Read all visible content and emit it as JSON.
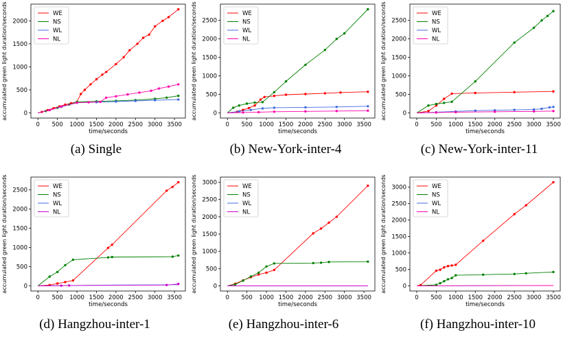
{
  "chart_data": [
    {
      "type": "line",
      "title": "",
      "caption": "(a) Single",
      "xlabel": "time/seconds",
      "ylabel": "accumulated green light duration/seconds",
      "xlim": [
        0,
        3600
      ],
      "ylim": [
        0,
        2250
      ],
      "xticks": [
        0,
        500,
        1000,
        1500,
        2000,
        2500,
        3000,
        3500
      ],
      "yticks": [
        0,
        500,
        1000,
        1500,
        2000
      ],
      "xtick_labels": [
        "0",
        "500",
        "1000",
        "1500",
        "2000",
        "2500",
        "3000",
        "3500"
      ],
      "ytick_labels": [
        "0",
        "500",
        "1000",
        "1500",
        "2000"
      ],
      "legend": "top-left",
      "grid": false,
      "series": [
        {
          "name": "WE",
          "color": "#ff0000",
          "x": [
            0,
            100,
            250,
            400,
            550,
            700,
            850,
            1000,
            1100,
            1200,
            1350,
            1500,
            1650,
            1750,
            2000,
            2200,
            2350,
            2550,
            2700,
            2850,
            3000,
            3200,
            3350,
            3600
          ],
          "y": [
            0,
            20,
            60,
            100,
            140,
            180,
            210,
            240,
            410,
            500,
            620,
            730,
            830,
            890,
            1060,
            1210,
            1360,
            1500,
            1630,
            1700,
            1880,
            2000,
            2080,
            2250
          ],
          "markers": true
        },
        {
          "name": "NS",
          "color": "#008000",
          "x": [
            0,
            200,
            500,
            800,
            1000,
            1500,
            2000,
            2500,
            3000,
            3300,
            3600
          ],
          "y": [
            0,
            40,
            110,
            180,
            240,
            250,
            262,
            278,
            305,
            330,
            370
          ],
          "markers": true
        },
        {
          "name": "WL",
          "color": "#4169e1",
          "x": [
            0,
            300,
            600,
            1000,
            1500,
            2000,
            2500,
            3000,
            3600
          ],
          "y": [
            0,
            60,
            130,
            220,
            232,
            245,
            260,
            275,
            290
          ],
          "markers": true
        },
        {
          "name": "NL",
          "color": "#ff00aa",
          "x": [
            0,
            300,
            600,
            1000,
            1300,
            1600,
            1750,
            2000,
            2300,
            2600,
            2900,
            3100,
            3350,
            3600
          ],
          "y": [
            0,
            60,
            140,
            220,
            230,
            240,
            330,
            360,
            400,
            440,
            480,
            530,
            570,
            620
          ],
          "markers": true
        }
      ]
    },
    {
      "type": "line",
      "title": "",
      "caption": "(b) New-York-inter-4",
      "xlabel": "time/seconds",
      "ylabel": "accumulated green light duration/seconds",
      "xlim": [
        0,
        3600
      ],
      "ylim": [
        0,
        2800
      ],
      "xticks": [
        0,
        500,
        1000,
        1500,
        2000,
        2500,
        3000,
        3500
      ],
      "yticks": [
        0,
        500,
        1000,
        1500,
        2000,
        2500
      ],
      "xtick_labels": [
        "0",
        "500",
        "1000",
        "1500",
        "2000",
        "2500",
        "3000",
        "3500"
      ],
      "ytick_labels": [
        "0",
        "500",
        "1000",
        "1500",
        "2000",
        "2500"
      ],
      "legend": "top-left",
      "grid": false,
      "series": [
        {
          "name": "WE",
          "color": "#ff0000",
          "x": [
            0,
            250,
            400,
            550,
            700,
            850,
            950,
            1200,
            1500,
            2000,
            2500,
            2900,
            3600
          ],
          "y": [
            0,
            30,
            80,
            130,
            200,
            360,
            430,
            460,
            490,
            510,
            530,
            550,
            570
          ],
          "markers": true
        },
        {
          "name": "NS",
          "color": "#008000",
          "x": [
            0,
            150,
            300,
            500,
            700,
            900,
            1200,
            1500,
            2000,
            2500,
            2800,
            3000,
            3600
          ],
          "y": [
            0,
            140,
            200,
            250,
            280,
            290,
            560,
            850,
            1300,
            1700,
            2000,
            2150,
            2800
          ],
          "markers": true
        },
        {
          "name": "WL",
          "color": "#4169e1",
          "x": [
            0,
            300,
            600,
            900,
            1200,
            2000,
            2800,
            3600
          ],
          "y": [
            0,
            40,
            80,
            120,
            140,
            150,
            160,
            180
          ],
          "markers": true
        },
        {
          "name": "NL",
          "color": "#ff00aa",
          "x": [
            0,
            400,
            800,
            1200,
            2000,
            2800,
            3600
          ],
          "y": [
            0,
            10,
            20,
            30,
            40,
            50,
            60
          ],
          "markers": true
        }
      ]
    },
    {
      "type": "line",
      "title": "",
      "caption": "(c) New-York-inter-11",
      "xlabel": "time/seconds",
      "ylabel": "accumulated green light duration/seconds",
      "xlim": [
        0,
        3500
      ],
      "ylim": [
        0,
        2800
      ],
      "xticks": [
        0,
        500,
        1000,
        1500,
        2000,
        2500,
        3000,
        3500
      ],
      "yticks": [
        0,
        500,
        1000,
        1500,
        2000,
        2500
      ],
      "xtick_labels": [
        "0",
        "500",
        "1000",
        "1500",
        "2000",
        "2500",
        "3000",
        "3500"
      ],
      "ytick_labels": [
        "0",
        "500",
        "1000",
        "1500",
        "2000",
        "2500"
      ],
      "legend": "top-left",
      "grid": false,
      "series": [
        {
          "name": "WE",
          "color": "#ff0000",
          "x": [
            0,
            300,
            500,
            700,
            900,
            1500,
            2500,
            3500
          ],
          "y": [
            0,
            50,
            200,
            380,
            520,
            540,
            560,
            580
          ],
          "markers": true
        },
        {
          "name": "NS",
          "color": "#008000",
          "x": [
            0,
            300,
            500,
            700,
            900,
            1500,
            2500,
            3000,
            3200,
            3350,
            3500
          ],
          "y": [
            0,
            200,
            240,
            270,
            300,
            850,
            1900,
            2300,
            2500,
            2620,
            2750
          ],
          "markers": true
        },
        {
          "name": "WL",
          "color": "#4169e1",
          "x": [
            0,
            500,
            1000,
            1500,
            2000,
            2500,
            3000,
            3200,
            3400,
            3500
          ],
          "y": [
            0,
            20,
            40,
            60,
            70,
            80,
            90,
            110,
            150,
            160
          ],
          "markers": true
        },
        {
          "name": "NL",
          "color": "#ff00aa",
          "x": [
            0,
            500,
            1000,
            2000,
            3000,
            3500
          ],
          "y": [
            0,
            10,
            20,
            30,
            40,
            50
          ],
          "markers": true
        }
      ]
    },
    {
      "type": "line",
      "title": "",
      "caption": "(d) Hangzhou-inter-1",
      "xlabel": "time/seconds",
      "ylabel": "accumulated green light duration/seconds",
      "xlim": [
        0,
        3600
      ],
      "ylim": [
        0,
        2700
      ],
      "xticks": [
        0,
        500,
        1000,
        1500,
        2000,
        2500,
        3000,
        3500
      ],
      "yticks": [
        0,
        500,
        1000,
        1500,
        2000,
        2500
      ],
      "xtick_labels": [
        "0",
        "500",
        "1000",
        "1500",
        "2000",
        "2500",
        "3000",
        "3500"
      ],
      "ytick_labels": [
        "0",
        "500",
        "1000",
        "1500",
        "2000",
        "2500"
      ],
      "legend": "top-left",
      "grid": false,
      "series": [
        {
          "name": "WE",
          "color": "#ff0000",
          "x": [
            0,
            300,
            500,
            700,
            900,
            1800,
            1900,
            3300,
            3450,
            3600
          ],
          "y": [
            0,
            20,
            60,
            100,
            140,
            990,
            1070,
            2480,
            2580,
            2700
          ],
          "markers": true
        },
        {
          "name": "NS",
          "color": "#008000",
          "x": [
            0,
            300,
            500,
            700,
            900,
            1800,
            1900,
            3450,
            3600
          ],
          "y": [
            0,
            240,
            360,
            540,
            680,
            740,
            750,
            760,
            790
          ],
          "markers": true
        },
        {
          "name": "WL",
          "color": "#4169e1",
          "x": [
            0,
            1000,
            2000,
            3000,
            3600
          ],
          "y": [
            0,
            10,
            20,
            25,
            30
          ],
          "markers": false
        },
        {
          "name": "NL",
          "color": "#cc00cc",
          "x": [
            0,
            600,
            800,
            3300,
            3600
          ],
          "y": [
            0,
            5,
            10,
            20,
            50
          ],
          "markers": true
        }
      ]
    },
    {
      "type": "line",
      "title": "",
      "caption": "(e) Hangzhou-inter-6",
      "xlabel": "time/seconds",
      "ylabel": "accumulated green light duration/seconds",
      "xlim": [
        0,
        3600
      ],
      "ylim": [
        0,
        3000
      ],
      "xticks": [
        0,
        500,
        1000,
        1500,
        2000,
        2500,
        3000,
        3500
      ],
      "yticks": [
        0,
        500,
        1000,
        1500,
        2000,
        2500,
        3000
      ],
      "xtick_labels": [
        "0",
        "500",
        "1000",
        "1500",
        "2000",
        "2500",
        "3000",
        "3500"
      ],
      "ytick_labels": [
        "0",
        "500",
        "1000",
        "1500",
        "2000",
        "2500",
        "3000"
      ],
      "legend": "top-left",
      "grid": false,
      "series": [
        {
          "name": "WE",
          "color": "#ff0000",
          "x": [
            0,
            200,
            400,
            600,
            800,
            1000,
            1200,
            2200,
            2400,
            2600,
            2800,
            3600
          ],
          "y": [
            0,
            60,
            160,
            250,
            330,
            380,
            460,
            1520,
            1660,
            1830,
            2000,
            2900
          ],
          "markers": true
        },
        {
          "name": "NS",
          "color": "#008000",
          "x": [
            0,
            200,
            400,
            600,
            800,
            1000,
            1200,
            2200,
            2400,
            2600,
            3600
          ],
          "y": [
            0,
            40,
            150,
            270,
            380,
            560,
            650,
            660,
            670,
            690,
            700
          ],
          "markers": true
        },
        {
          "name": "WL",
          "color": "#4169e1",
          "x": [
            0,
            1800,
            3600
          ],
          "y": [
            0,
            0,
            0
          ],
          "markers": false
        },
        {
          "name": "NL",
          "color": "#cc00cc",
          "x": [
            0,
            1800,
            3600
          ],
          "y": [
            0,
            0,
            0
          ],
          "markers": false
        }
      ]
    },
    {
      "type": "line",
      "title": "",
      "caption": "(f) Hangzhou-inter-10",
      "xlabel": "time/seconds",
      "ylabel": "accumulated green light duration/seconds",
      "xlim": [
        0,
        3500
      ],
      "ylim": [
        0,
        3150
      ],
      "xticks": [
        0,
        500,
        1000,
        1500,
        2000,
        2500,
        3000,
        3500
      ],
      "yticks": [
        0,
        500,
        1000,
        1500,
        2000,
        2500,
        3000
      ],
      "xtick_labels": [
        "0",
        "500",
        "1000",
        "1500",
        "2000",
        "2500",
        "3000",
        "3500"
      ],
      "ytick_labels": [
        "0",
        "500",
        "1000",
        "1500",
        "2000",
        "2500",
        "3000"
      ],
      "legend": "top-left",
      "grid": false,
      "series": [
        {
          "name": "WE",
          "color": "#ff0000",
          "x": [
            0,
            100,
            500,
            600,
            700,
            800,
            900,
            1000,
            1700,
            2500,
            2800,
            3500
          ],
          "y": [
            0,
            20,
            460,
            490,
            560,
            600,
            620,
            640,
            1370,
            2180,
            2450,
            3150
          ],
          "markers": true
        },
        {
          "name": "NS",
          "color": "#008000",
          "x": [
            0,
            500,
            600,
            700,
            800,
            900,
            1000,
            1700,
            2500,
            2800,
            3500
          ],
          "y": [
            0,
            30,
            80,
            140,
            200,
            240,
            320,
            340,
            360,
            380,
            420
          ],
          "markers": true
        },
        {
          "name": "WL",
          "color": "#4169e1",
          "x": [
            0,
            1700,
            3500
          ],
          "y": [
            0,
            5,
            10
          ],
          "markers": false
        },
        {
          "name": "NL",
          "color": "#ff00aa",
          "x": [
            0,
            1700,
            3500
          ],
          "y": [
            0,
            5,
            10
          ],
          "markers": false
        }
      ]
    }
  ]
}
